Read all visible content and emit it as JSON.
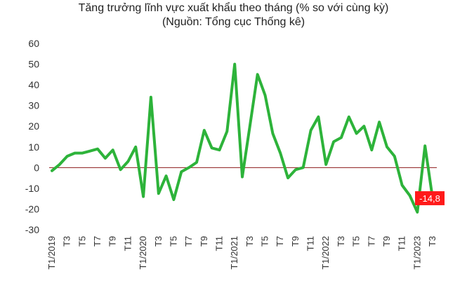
{
  "chart_data": {
    "type": "line",
    "title": "Tăng trưởng lĩnh vực xuất khẩu theo tháng (% so với cùng kỳ)",
    "subtitle": "(Nguồn: Tổng cục Thống kê)",
    "ylim": [
      -30,
      60
    ],
    "yticks": [
      "60",
      "50",
      "40",
      "30",
      "20",
      "10",
      "0",
      "-10",
      "-20",
      "-30"
    ],
    "ytick_values": [
      60,
      50,
      40,
      30,
      20,
      10,
      0,
      -10,
      -20,
      -30
    ],
    "xtick_labels": [
      "T1/2019",
      "T3",
      "T5",
      "T7",
      "T9",
      "T11",
      "T1/2020",
      "T3",
      "T5",
      "T7",
      "T9",
      "T11",
      "T1/2021",
      "T3",
      "T5",
      "T7",
      "T9",
      "T11",
      "T1/2022",
      "T3",
      "T5",
      "T7",
      "T9",
      "T11",
      "T1/2023",
      "T3"
    ],
    "x": [
      "T1/2019",
      "T2/2019",
      "T3/2019",
      "T4/2019",
      "T5/2019",
      "T6/2019",
      "T7/2019",
      "T8/2019",
      "T9/2019",
      "T10/2019",
      "T11/2019",
      "T12/2019",
      "T1/2020",
      "T2/2020",
      "T3/2020",
      "T4/2020",
      "T5/2020",
      "T6/2020",
      "T7/2020",
      "T8/2020",
      "T9/2020",
      "T10/2020",
      "T11/2020",
      "T12/2020",
      "T1/2021",
      "T2/2021",
      "T3/2021",
      "T4/2021",
      "T5/2021",
      "T6/2021",
      "T7/2021",
      "T8/2021",
      "T9/2021",
      "T10/2021",
      "T11/2021",
      "T12/2021",
      "T1/2022",
      "T2/2022",
      "T3/2022",
      "T4/2022",
      "T5/2022",
      "T6/2022",
      "T7/2022",
      "T8/2022",
      "T9/2022",
      "T10/2022",
      "T11/2022",
      "T12/2022",
      "T1/2023",
      "T2/2023",
      "T3/2023"
    ],
    "series": [
      {
        "values": [
          -1.5,
          1.5,
          5.5,
          7,
          7,
          8,
          9,
          4.5,
          8.5,
          -1,
          3,
          10,
          -14,
          34,
          -12.5,
          -4,
          -15.5,
          -2,
          0,
          2.5,
          18,
          9.5,
          8.5,
          17.5,
          50,
          -4.5,
          20,
          45,
          35,
          16.5,
          7,
          -5,
          -1,
          0,
          18,
          24.5,
          1.5,
          12.5,
          14.5,
          24.5,
          16.5,
          20,
          8.5,
          22,
          10,
          5.5,
          -8.5,
          -13.5,
          -21.5,
          10.5,
          -14.8
        ],
        "color": "#2db33a"
      }
    ],
    "zero_line_color": "#8b1a1a",
    "grid": false,
    "annotations": [
      {
        "text": "-14,8",
        "target": "T3/2023",
        "color": "#ff1a1a"
      }
    ]
  }
}
